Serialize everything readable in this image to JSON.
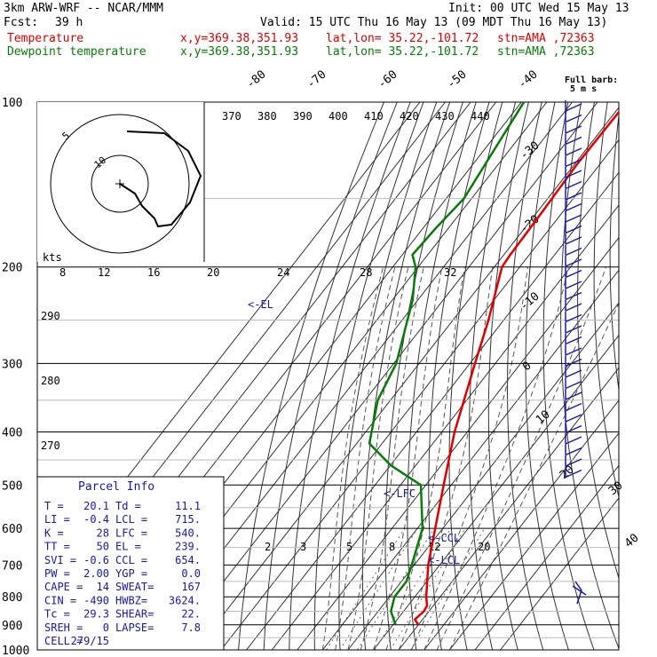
{
  "header": {
    "model": "3km ARW-WRF -- NCAR/MMM",
    "init": "Init: 00 UTC Wed 15 May 13",
    "fcst_label": "Fcst:",
    "fcst_value": "39 h",
    "valid": "Valid: 15 UTC Thu 16 May 13 (09 MDT Thu 16 May 13)",
    "temp_label": "Temperature",
    "dew_label": "Dewpoint temperature",
    "xy": "x,y=369.38,351.93",
    "latlon": "lat,lon= 35.22,-101.72",
    "stn": "stn=AMA ,72363",
    "full_barb": "Full barb:",
    "full_barb_unit": "5 m s",
    "colors": {
      "temperature": "#e00000",
      "dewpoint": "#0a7a0a",
      "barbs": "#1a1aa0"
    }
  },
  "chart_data": {
    "type": "line",
    "title": "",
    "ylabel": "",
    "y_scale": "log-pressure",
    "pressure_ticks": [
      "100",
      "200",
      "300",
      "400",
      "500",
      "600",
      "700",
      "800",
      "900",
      "1000"
    ],
    "temperature_isotherm_labels": [
      "-80",
      "-70",
      "-60",
      "-50",
      "-40",
      "-30",
      "-20",
      "-10",
      "0",
      "10",
      "20",
      "30",
      "40"
    ],
    "dry_adiabat_labels": [
      "290",
      "280",
      "270"
    ],
    "theta_e_labels": [
      "370",
      "380",
      "390",
      "400",
      "410",
      "420",
      "430",
      "440"
    ],
    "mixing_ratio_labels": [
      "2",
      "3",
      "5",
      "8",
      "12",
      "20"
    ],
    "series": [
      {
        "name": "Temperature",
        "color": "#e00000",
        "points": [
          [
            100,
            -58.5
          ],
          [
            130,
            -59
          ],
          [
            160,
            -58
          ],
          [
            190,
            -57.5
          ],
          [
            200,
            -57
          ],
          [
            250,
            -46
          ],
          [
            300,
            -38
          ],
          [
            400,
            -25
          ],
          [
            500,
            -13
          ],
          [
            600,
            -3
          ],
          [
            700,
            5.5
          ],
          [
            800,
            14.5
          ],
          [
            830,
            17.5
          ],
          [
            850,
            18
          ],
          [
            880,
            17
          ],
          [
            900,
            20
          ]
        ]
      },
      {
        "name": "Dewpoint temperature",
        "color": "#0a7a0a",
        "points": [
          [
            100,
            -99
          ],
          [
            150,
            -93
          ],
          [
            170,
            -95
          ],
          [
            190,
            -96
          ],
          [
            200,
            -91
          ],
          [
            230,
            -82
          ],
          [
            300,
            -69
          ],
          [
            350,
            -65
          ],
          [
            420,
            -55
          ],
          [
            460,
            -40
          ],
          [
            500,
            -22
          ],
          [
            600,
            -8
          ],
          [
            700,
            -1
          ],
          [
            750,
            2
          ],
          [
            800,
            2
          ],
          [
            850,
            5
          ],
          [
            900,
            11
          ]
        ]
      }
    ],
    "annotations": {
      "el": "<-EL",
      "lfc": "<-LFC",
      "ccl": "<-CCL",
      "lcl": "<-LCL"
    },
    "hodograph": {
      "label": "kts",
      "ring_labels": [
        "5",
        "10"
      ],
      "speed_ticks": [
        "8",
        "12",
        "16",
        "20",
        "24",
        "28",
        "32"
      ]
    },
    "parcel_info": {
      "title": "Parcel Info",
      "rows": [
        [
          "T  =",
          "20.1",
          "Td =",
          "11.1"
        ],
        [
          "LI =",
          "-0.4",
          "LCL =",
          "715."
        ],
        [
          "K  =",
          "28",
          "LFC =",
          "540."
        ],
        [
          "TT =",
          "50",
          "EL  =",
          "239."
        ],
        [
          "SVI =",
          "-0.6",
          "CCL =",
          "654."
        ],
        [
          "PW =",
          "2.00",
          "YGP =",
          "0.0"
        ],
        [
          "CAPE =",
          "14",
          "SWEAT=",
          "167"
        ],
        [
          "CIN =",
          "-490",
          "HWBZ=",
          "3624."
        ],
        [
          "Tc =",
          "29.3",
          "SHEAR=",
          "22."
        ],
        [
          "SREH =",
          "0",
          "LAPSE=",
          "7.8"
        ],
        [
          "CELL =",
          "279/15",
          "",
          ""
        ]
      ]
    }
  }
}
